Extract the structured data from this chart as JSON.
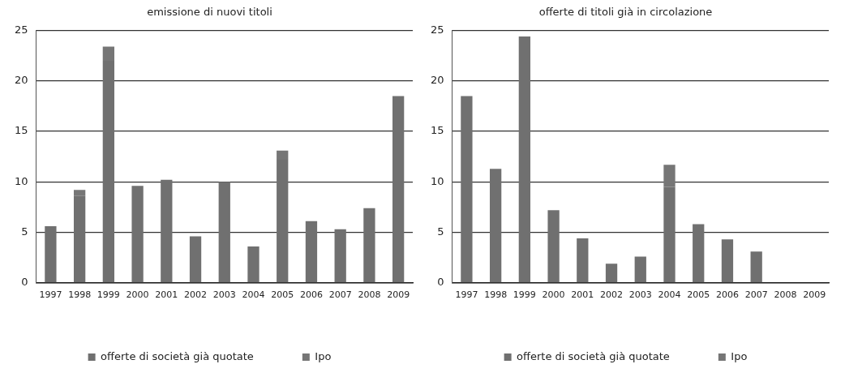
{
  "chart_data": [
    {
      "type": "bar",
      "title": "emissione di nuovi titoli",
      "categories": [
        "1997",
        "1998",
        "1999",
        "2000",
        "2001",
        "2002",
        "2003",
        "2004",
        "2005",
        "2006",
        "2007",
        "2008",
        "2009"
      ],
      "stacked": true,
      "series": [
        {
          "name": "offerte di società già quotate",
          "color": "#707070",
          "values": [
            5.6,
            8.6,
            22,
            9.6,
            10.2,
            4.6,
            10,
            3.6,
            12.2,
            6.1,
            5.3,
            7.4,
            18.5
          ]
        },
        {
          "name": "Ipo",
          "color": "#767676",
          "values": [
            0,
            0.6,
            1.4,
            0,
            0,
            0,
            0,
            0,
            0.9,
            0,
            0,
            0,
            0
          ]
        }
      ],
      "ylim": [
        0,
        25
      ],
      "yticks": [
        0,
        5,
        10,
        15,
        20,
        25
      ],
      "grid": "y",
      "legend": "bottom"
    },
    {
      "type": "bar",
      "title": "offerte di titoli già in circolazione",
      "categories": [
        "1997",
        "1998",
        "1999",
        "2000",
        "2001",
        "2002",
        "2003",
        "2004",
        "2005",
        "2006",
        "2007",
        "2008",
        "2009"
      ],
      "stacked": true,
      "series": [
        {
          "name": "offerte di società già quotate",
          "color": "#707070",
          "values": [
            18.5,
            11.3,
            24.4,
            7.2,
            4.4,
            1.9,
            2.6,
            9.5,
            5.8,
            4.3,
            3.1,
            0,
            0
          ]
        },
        {
          "name": "Ipo",
          "color": "#767676",
          "values": [
            0,
            0,
            0,
            0,
            0,
            0,
            0,
            2.2,
            0,
            0,
            0,
            0,
            0
          ]
        }
      ],
      "ylim": [
        0,
        25
      ],
      "yticks": [
        0,
        5,
        10,
        15,
        20,
        25
      ],
      "grid": "y",
      "legend": "bottom"
    }
  ]
}
